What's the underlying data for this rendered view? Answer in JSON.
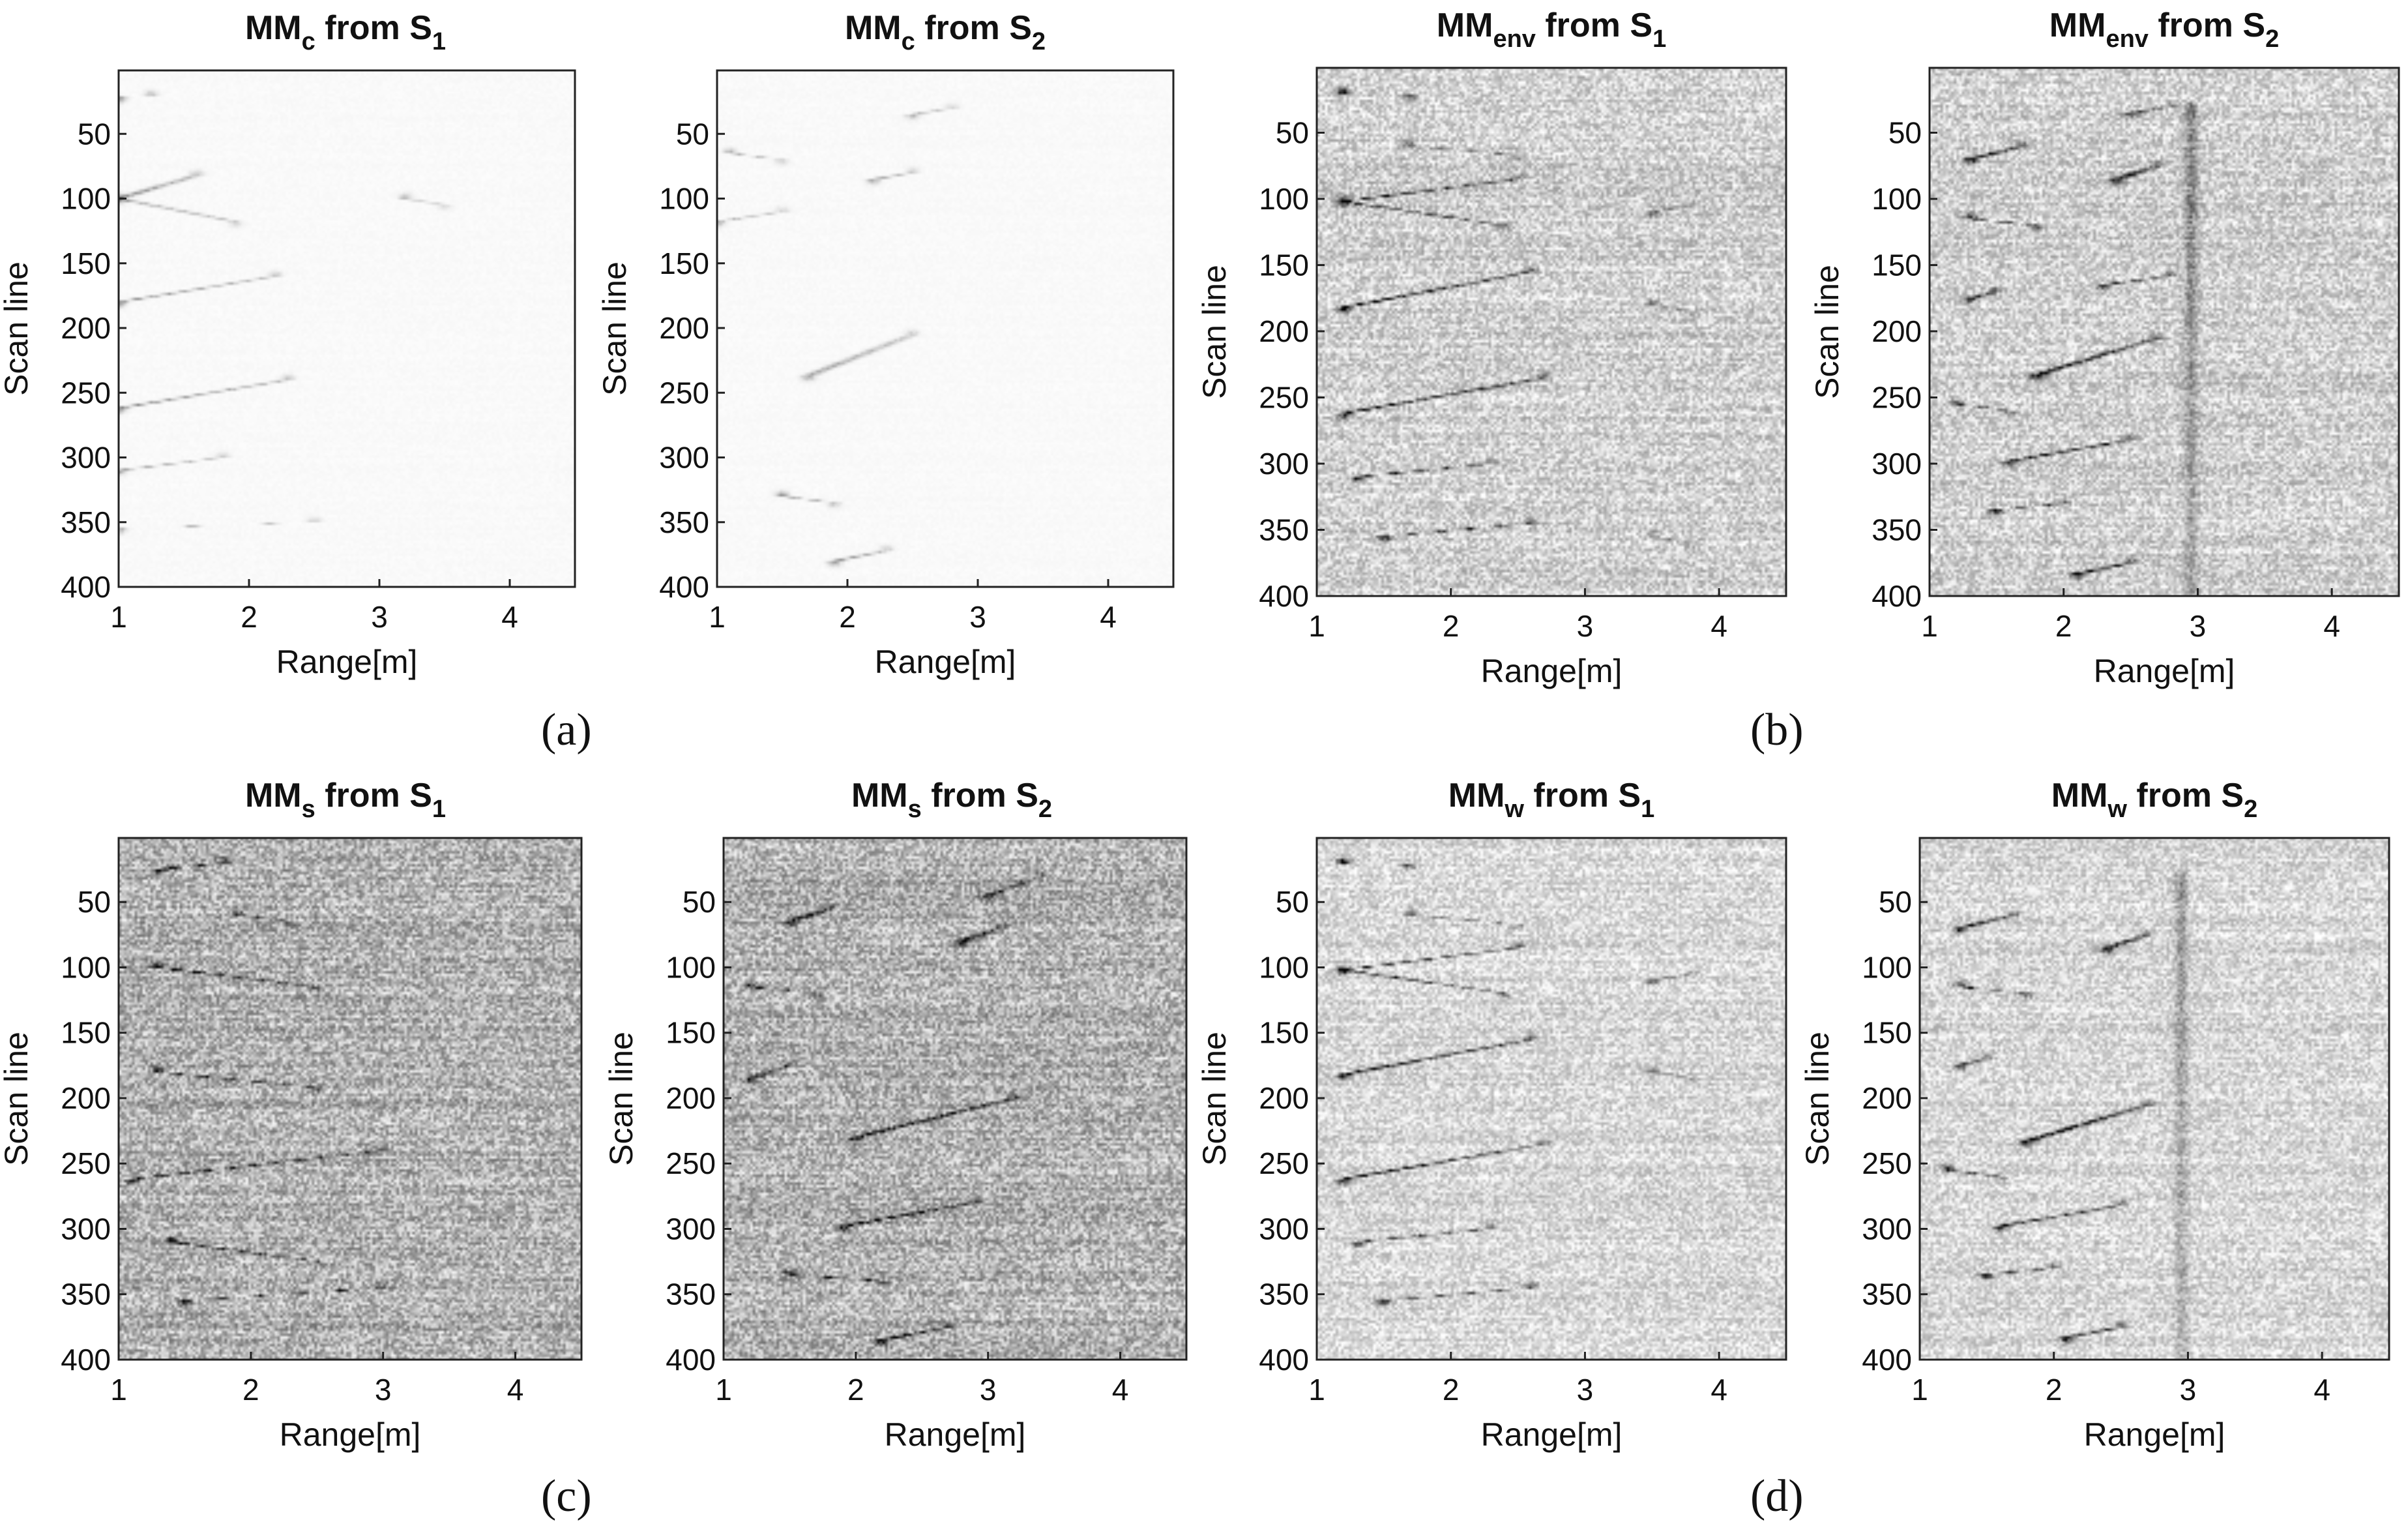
{
  "panel_labels": [
    "(a)",
    "(b)",
    "(c)",
    "(d)"
  ],
  "chart_data": [
    {
      "type": "heatmap",
      "title": {
        "base": "MM",
        "sub": "c",
        "mid": " from S",
        "tail": "1"
      },
      "xlabel": "Range[m]",
      "ylabel": "Scan line",
      "xlim": [
        1,
        4.5
      ],
      "ylim": [
        400,
        1
      ],
      "xticks": [
        "1",
        "2",
        "3",
        "4"
      ],
      "yticks": [
        "50",
        "100",
        "150",
        "200",
        "250",
        "300",
        "350",
        "400"
      ],
      "colormap": "gray (white = low, black = high)",
      "background_level": 0.02,
      "noise": 0.01,
      "features": [
        {
          "x0": 1.0,
          "y0": 22,
          "x1": 1.25,
          "y1": 20,
          "intensity": 0.4
        },
        {
          "x0": 1.0,
          "y0": 100,
          "x1": 1.6,
          "y1": 82,
          "intensity": 0.45
        },
        {
          "x0": 1.0,
          "y0": 100,
          "x1": 1.9,
          "y1": 118,
          "intensity": 0.35
        },
        {
          "x0": 1.0,
          "y0": 180,
          "x1": 2.2,
          "y1": 160,
          "intensity": 0.4
        },
        {
          "x0": 1.0,
          "y0": 262,
          "x1": 2.3,
          "y1": 240,
          "intensity": 0.45
        },
        {
          "x0": 1.0,
          "y0": 310,
          "x1": 1.8,
          "y1": 300,
          "intensity": 0.35
        },
        {
          "x0": 1.0,
          "y0": 355,
          "x1": 2.5,
          "y1": 350,
          "intensity": 0.35
        },
        {
          "x0": 3.2,
          "y0": 100,
          "x1": 3.5,
          "y1": 105,
          "intensity": 0.25
        }
      ]
    },
    {
      "type": "heatmap",
      "title": {
        "base": "MM",
        "sub": "c",
        "mid": " from S",
        "tail": "2"
      },
      "xlabel": "Range[m]",
      "ylabel": "Scan line",
      "xlim": [
        1,
        4.5
      ],
      "ylim": [
        400,
        1
      ],
      "xticks": [
        "1",
        "2",
        "3",
        "4"
      ],
      "yticks": [
        "50",
        "100",
        "150",
        "200",
        "250",
        "300",
        "350",
        "400"
      ],
      "colormap": "gray (white = low, black = high)",
      "background_level": 0.02,
      "noise": 0.01,
      "features": [
        {
          "x0": 1.1,
          "y0": 65,
          "x1": 1.5,
          "y1": 70,
          "intensity": 0.3
        },
        {
          "x0": 2.2,
          "y0": 85,
          "x1": 2.5,
          "y1": 80,
          "intensity": 0.35
        },
        {
          "x0": 1.0,
          "y0": 118,
          "x1": 1.5,
          "y1": 110,
          "intensity": 0.3
        },
        {
          "x0": 1.7,
          "y0": 237,
          "x1": 2.5,
          "y1": 205,
          "intensity": 0.35
        },
        {
          "x0": 1.5,
          "y0": 330,
          "x1": 1.9,
          "y1": 335,
          "intensity": 0.4
        },
        {
          "x0": 1.9,
          "y0": 380,
          "x1": 2.3,
          "y1": 372,
          "intensity": 0.4
        },
        {
          "x0": 2.5,
          "y0": 35,
          "x1": 2.8,
          "y1": 30,
          "intensity": 0.3
        }
      ]
    },
    {
      "type": "heatmap",
      "title": {
        "base": "MM",
        "sub": "env",
        "mid": " from S",
        "tail": "1"
      },
      "xlabel": "Range[m]",
      "ylabel": "Scan line",
      "xlim": [
        1,
        4.5
      ],
      "ylim": [
        400,
        1
      ],
      "xticks": [
        "1",
        "2",
        "3",
        "4"
      ],
      "yticks": [
        "50",
        "100",
        "150",
        "200",
        "250",
        "300",
        "350",
        "400"
      ],
      "colormap": "gray (white = low, black = high)",
      "background_level": 0.18,
      "noise": 0.17,
      "features": [
        {
          "x0": 1.2,
          "y0": 20,
          "x1": 1.7,
          "y1": 22,
          "intensity": 0.9
        },
        {
          "x0": 1.7,
          "y0": 60,
          "x1": 2.5,
          "y1": 67,
          "intensity": 0.55
        },
        {
          "x0": 1.2,
          "y0": 102,
          "x1": 2.5,
          "y1": 85,
          "intensity": 0.9
        },
        {
          "x0": 1.2,
          "y0": 102,
          "x1": 2.4,
          "y1": 120,
          "intensity": 0.75
        },
        {
          "x0": 1.2,
          "y0": 182,
          "x1": 2.6,
          "y1": 155,
          "intensity": 0.9
        },
        {
          "x0": 1.2,
          "y0": 262,
          "x1": 2.7,
          "y1": 235,
          "intensity": 0.95
        },
        {
          "x0": 1.3,
          "y0": 310,
          "x1": 2.3,
          "y1": 300,
          "intensity": 0.8
        },
        {
          "x0": 1.5,
          "y0": 355,
          "x1": 2.6,
          "y1": 345,
          "intensity": 0.8
        },
        {
          "x0": 3.5,
          "y0": 110,
          "x1": 3.8,
          "y1": 105,
          "intensity": 0.45
        },
        {
          "x0": 3.5,
          "y0": 180,
          "x1": 3.8,
          "y1": 185,
          "intensity": 0.45
        },
        {
          "x0": 3.5,
          "y0": 355,
          "x1": 3.8,
          "y1": 360,
          "intensity": 0.4
        }
      ]
    },
    {
      "type": "heatmap",
      "title": {
        "base": "MM",
        "sub": "env",
        "mid": " from S",
        "tail": "2"
      },
      "xlabel": "Range[m]",
      "ylabel": "Scan line",
      "xlim": [
        1,
        4.5
      ],
      "ylim": [
        400,
        1
      ],
      "xticks": [
        "1",
        "2",
        "3",
        "4"
      ],
      "yticks": [
        "50",
        "100",
        "150",
        "200",
        "250",
        "300",
        "350",
        "400"
      ],
      "colormap": "gray (white = low, black = high)",
      "background_level": 0.18,
      "noise": 0.17,
      "features": [
        {
          "x0": 1.3,
          "y0": 70,
          "x1": 1.7,
          "y1": 60,
          "intensity": 0.85
        },
        {
          "x0": 2.4,
          "y0": 85,
          "x1": 2.7,
          "y1": 75,
          "intensity": 0.9
        },
        {
          "x0": 1.3,
          "y0": 115,
          "x1": 1.8,
          "y1": 120,
          "intensity": 0.8
        },
        {
          "x0": 1.3,
          "y0": 175,
          "x1": 1.5,
          "y1": 170,
          "intensity": 0.75
        },
        {
          "x0": 2.3,
          "y0": 165,
          "x1": 2.8,
          "y1": 158,
          "intensity": 0.75
        },
        {
          "x0": 1.8,
          "y0": 233,
          "x1": 2.7,
          "y1": 205,
          "intensity": 0.9
        },
        {
          "x0": 1.2,
          "y0": 255,
          "x1": 1.6,
          "y1": 260,
          "intensity": 0.75
        },
        {
          "x0": 1.6,
          "y0": 298,
          "x1": 2.5,
          "y1": 282,
          "intensity": 0.9
        },
        {
          "x0": 1.5,
          "y0": 335,
          "x1": 2.0,
          "y1": 330,
          "intensity": 0.85
        },
        {
          "x0": 2.1,
          "y0": 383,
          "x1": 2.5,
          "y1": 375,
          "intensity": 0.9
        },
        {
          "x0": 2.5,
          "y0": 35,
          "x1": 2.8,
          "y1": 30,
          "intensity": 0.65
        },
        {
          "x0": 2.95,
          "y0": 30,
          "x1": 2.95,
          "y1": 400,
          "intensity": 0.35
        }
      ]
    },
    {
      "type": "heatmap",
      "title": {
        "base": "MM",
        "sub": "s",
        "mid": " from S",
        "tail": "1"
      },
      "xlabel": "Range[m]",
      "ylabel": "Scan line",
      "xlim": [
        1,
        4.5
      ],
      "ylim": [
        400,
        1
      ],
      "xticks": [
        "1",
        "2",
        "3",
        "4"
      ],
      "yticks": [
        "50",
        "100",
        "150",
        "200",
        "250",
        "300",
        "350",
        "400"
      ],
      "colormap": "gray (white = low, black = high)",
      "background_level": 0.3,
      "noise": 0.22,
      "features": [
        {
          "x0": 1.3,
          "y0": 25,
          "x1": 1.8,
          "y1": 20,
          "intensity": 0.8
        },
        {
          "x0": 1.9,
          "y0": 60,
          "x1": 2.3,
          "y1": 65,
          "intensity": 0.55
        },
        {
          "x0": 1.3,
          "y0": 100,
          "x1": 2.5,
          "y1": 115,
          "intensity": 0.8
        },
        {
          "x0": 1.3,
          "y0": 180,
          "x1": 2.5,
          "y1": 192,
          "intensity": 0.75
        },
        {
          "x0": 1.1,
          "y0": 262,
          "x1": 3.0,
          "y1": 240,
          "intensity": 0.8
        },
        {
          "x0": 1.4,
          "y0": 310,
          "x1": 2.5,
          "y1": 325,
          "intensity": 0.75
        },
        {
          "x0": 1.5,
          "y0": 355,
          "x1": 3.0,
          "y1": 345,
          "intensity": 0.7
        }
      ]
    },
    {
      "type": "heatmap",
      "title": {
        "base": "MM",
        "sub": "s",
        "mid": " from S",
        "tail": "2"
      },
      "xlabel": "Range[m]",
      "ylabel": "Scan line",
      "xlim": [
        1,
        4.5
      ],
      "ylim": [
        400,
        1
      ],
      "xticks": [
        "1",
        "2",
        "3",
        "4"
      ],
      "yticks": [
        "50",
        "100",
        "150",
        "200",
        "250",
        "300",
        "350",
        "400"
      ],
      "colormap": "gray (white = low, black = high)",
      "background_level": 0.3,
      "noise": 0.22,
      "features": [
        {
          "x0": 1.5,
          "y0": 65,
          "x1": 1.8,
          "y1": 55,
          "intensity": 0.75
        },
        {
          "x0": 2.8,
          "y0": 80,
          "x1": 3.1,
          "y1": 70,
          "intensity": 0.8
        },
        {
          "x0": 1.2,
          "y0": 115,
          "x1": 1.7,
          "y1": 120,
          "intensity": 0.7
        },
        {
          "x0": 1.2,
          "y0": 185,
          "x1": 1.5,
          "y1": 175,
          "intensity": 0.7
        },
        {
          "x0": 2.0,
          "y0": 230,
          "x1": 3.2,
          "y1": 200,
          "intensity": 0.8
        },
        {
          "x0": 1.9,
          "y0": 298,
          "x1": 2.9,
          "y1": 280,
          "intensity": 0.85
        },
        {
          "x0": 1.5,
          "y0": 335,
          "x1": 2.2,
          "y1": 340,
          "intensity": 0.8
        },
        {
          "x0": 2.2,
          "y0": 385,
          "x1": 2.7,
          "y1": 375,
          "intensity": 0.85
        },
        {
          "x0": 3.0,
          "y0": 45,
          "x1": 3.4,
          "y1": 30,
          "intensity": 0.55
        }
      ]
    },
    {
      "type": "heatmap",
      "title": {
        "base": "MM",
        "sub": "w",
        "mid": " from S",
        "tail": "1"
      },
      "xlabel": "Range[m]",
      "ylabel": "Scan line",
      "xlim": [
        1,
        4.5
      ],
      "ylim": [
        400,
        1
      ],
      "xticks": [
        "1",
        "2",
        "3",
        "4"
      ],
      "yticks": [
        "50",
        "100",
        "150",
        "200",
        "250",
        "300",
        "350",
        "400"
      ],
      "colormap": "gray (white = low, black = high)",
      "background_level": 0.15,
      "noise": 0.15,
      "features": [
        {
          "x0": 1.2,
          "y0": 20,
          "x1": 1.7,
          "y1": 22,
          "intensity": 0.9
        },
        {
          "x0": 1.7,
          "y0": 60,
          "x1": 2.5,
          "y1": 67,
          "intensity": 0.55
        },
        {
          "x0": 1.2,
          "y0": 102,
          "x1": 2.5,
          "y1": 85,
          "intensity": 0.9
        },
        {
          "x0": 1.2,
          "y0": 102,
          "x1": 2.4,
          "y1": 120,
          "intensity": 0.75
        },
        {
          "x0": 1.2,
          "y0": 182,
          "x1": 2.6,
          "y1": 155,
          "intensity": 0.9
        },
        {
          "x0": 1.2,
          "y0": 262,
          "x1": 2.7,
          "y1": 235,
          "intensity": 0.95
        },
        {
          "x0": 1.3,
          "y0": 310,
          "x1": 2.3,
          "y1": 300,
          "intensity": 0.8
        },
        {
          "x0": 1.5,
          "y0": 355,
          "x1": 2.6,
          "y1": 345,
          "intensity": 0.8
        },
        {
          "x0": 3.5,
          "y0": 110,
          "x1": 3.8,
          "y1": 105,
          "intensity": 0.45
        },
        {
          "x0": 3.5,
          "y0": 180,
          "x1": 3.8,
          "y1": 185,
          "intensity": 0.45
        }
      ]
    },
    {
      "type": "heatmap",
      "title": {
        "base": "MM",
        "sub": "w",
        "mid": " from S",
        "tail": "2"
      },
      "xlabel": "Range[m]",
      "ylabel": "Scan line",
      "xlim": [
        1,
        4.5
      ],
      "ylim": [
        400,
        1
      ],
      "xticks": [
        "1",
        "2",
        "3",
        "4"
      ],
      "yticks": [
        "50",
        "100",
        "150",
        "200",
        "250",
        "300",
        "350",
        "400"
      ],
      "colormap": "gray (white = low, black = high)",
      "background_level": 0.15,
      "noise": 0.15,
      "features": [
        {
          "x0": 1.3,
          "y0": 70,
          "x1": 1.7,
          "y1": 60,
          "intensity": 0.85
        },
        {
          "x0": 2.4,
          "y0": 85,
          "x1": 2.7,
          "y1": 75,
          "intensity": 0.9
        },
        {
          "x0": 1.3,
          "y0": 115,
          "x1": 1.8,
          "y1": 120,
          "intensity": 0.8
        },
        {
          "x0": 1.3,
          "y0": 175,
          "x1": 1.5,
          "y1": 170,
          "intensity": 0.75
        },
        {
          "x0": 1.8,
          "y0": 233,
          "x1": 2.7,
          "y1": 205,
          "intensity": 0.9
        },
        {
          "x0": 1.2,
          "y0": 255,
          "x1": 1.6,
          "y1": 260,
          "intensity": 0.75
        },
        {
          "x0": 1.6,
          "y0": 298,
          "x1": 2.5,
          "y1": 282,
          "intensity": 0.9
        },
        {
          "x0": 1.5,
          "y0": 335,
          "x1": 2.0,
          "y1": 330,
          "intensity": 0.85
        },
        {
          "x0": 2.1,
          "y0": 383,
          "x1": 2.5,
          "y1": 375,
          "intensity": 0.9
        },
        {
          "x0": 2.95,
          "y0": 30,
          "x1": 2.95,
          "y1": 400,
          "intensity": 0.3
        }
      ]
    }
  ]
}
